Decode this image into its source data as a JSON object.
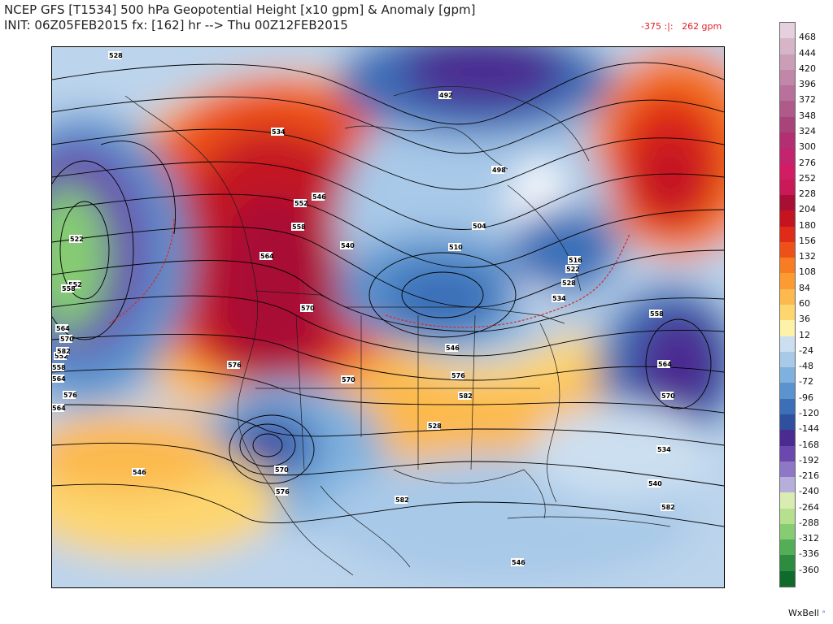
{
  "header": {
    "title": "NCEP GFS [T1534] 500 hPa Geopotential Height [x10 gpm] & Anomaly [gpm]",
    "subtitle": "INIT: 06Z05FEB2015 fx: [162] hr --> Thu 00Z12FEB2015",
    "range_text": "-375 :|:   262 gpm"
  },
  "map": {
    "height_labels": [
      "528",
      "492",
      "534",
      "552",
      "546",
      "558",
      "540",
      "522",
      "564",
      "510",
      "504",
      "498",
      "516",
      "522",
      "528",
      "534",
      "570",
      "576",
      "546",
      "552",
      "558",
      "564",
      "570",
      "576",
      "582",
      "528",
      "534",
      "540",
      "546",
      "552",
      "558",
      "564",
      "570",
      "582",
      "576",
      "564",
      "570",
      "576",
      "582",
      "582",
      "546",
      "558",
      "564",
      "570"
    ]
  },
  "legend": {
    "values": [
      "468",
      "444",
      "420",
      "396",
      "372",
      "348",
      "324",
      "300",
      "276",
      "252",
      "228",
      "204",
      "180",
      "156",
      "132",
      "108",
      "84",
      "60",
      "36",
      "12",
      "-24",
      "-48",
      "-72",
      "-96",
      "-120",
      "-144",
      "-168",
      "-192",
      "-216",
      "-240",
      "-264",
      "-288",
      "-312",
      "-336",
      "-360"
    ],
    "colors": [
      "#e6d0de",
      "#d7b5c9",
      "#cb9eb8",
      "#c087a8",
      "#b8719a",
      "#ae5b8a",
      "#a9447b",
      "#b22f73",
      "#c2246d",
      "#d21c63",
      "#c91957",
      "#a80f34",
      "#c41422",
      "#df2b17",
      "#ed5018",
      "#f77c22",
      "#fb9b31",
      "#fcb94d",
      "#fdd670",
      "#fef1a8",
      "#ccdff0",
      "#a8c9e8",
      "#7fb1de",
      "#5a93cd",
      "#3b6fb8",
      "#2f4f9f",
      "#4b2b91",
      "#6a48ad",
      "#8e77c4",
      "#b6aedb",
      "#d9ecb2",
      "#b6e08d",
      "#86cc72",
      "#54ad57",
      "#2d8c40",
      "#0f6a2c"
    ]
  },
  "brand": "WxBell"
}
